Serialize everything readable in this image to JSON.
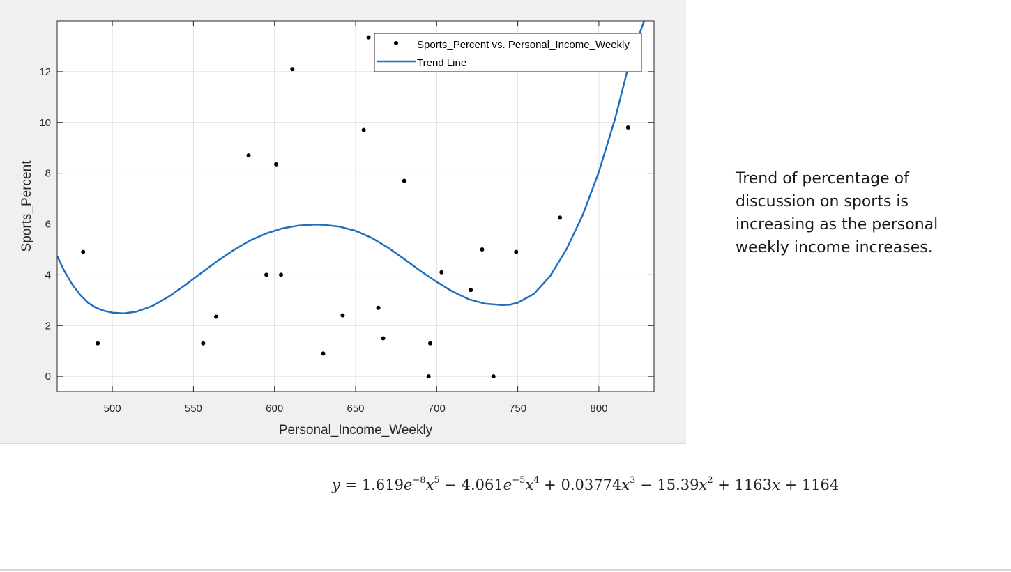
{
  "chart_data": {
    "type": "scatter",
    "xlabel": "Personal_Income_Weekly",
    "ylabel": "Sports_Percent",
    "xlim": [
      466,
      834
    ],
    "ylim": [
      -0.6,
      14.0
    ],
    "xticks": [
      500,
      550,
      600,
      650,
      700,
      750,
      800
    ],
    "yticks": [
      0,
      2,
      4,
      6,
      8,
      10,
      12
    ],
    "grid": true,
    "legend_position": "top-right",
    "series": [
      {
        "name": "Sports_Percent vs. Personal_Income_Weekly",
        "kind": "scatter",
        "color": "#000000",
        "points": [
          {
            "x": 482,
            "y": 4.9
          },
          {
            "x": 491,
            "y": 1.3
          },
          {
            "x": 556,
            "y": 1.3
          },
          {
            "x": 564,
            "y": 2.35
          },
          {
            "x": 584,
            "y": 8.7
          },
          {
            "x": 595,
            "y": 4.0
          },
          {
            "x": 601,
            "y": 8.35
          },
          {
            "x": 604,
            "y": 4.0
          },
          {
            "x": 611,
            "y": 12.1
          },
          {
            "x": 630,
            "y": 0.9
          },
          {
            "x": 642,
            "y": 2.4
          },
          {
            "x": 655,
            "y": 9.7
          },
          {
            "x": 658,
            "y": 13.35
          },
          {
            "x": 664,
            "y": 2.7
          },
          {
            "x": 667,
            "y": 1.5
          },
          {
            "x": 680,
            "y": 7.7
          },
          {
            "x": 695,
            "y": 0.0
          },
          {
            "x": 696,
            "y": 1.3
          },
          {
            "x": 703,
            "y": 4.1
          },
          {
            "x": 721,
            "y": 3.4
          },
          {
            "x": 728,
            "y": 5.0
          },
          {
            "x": 735,
            "y": 0.0
          },
          {
            "x": 749,
            "y": 4.9
          },
          {
            "x": 776,
            "y": 6.25
          },
          {
            "x": 818,
            "y": 9.8
          }
        ]
      },
      {
        "name": "Trend Line",
        "kind": "line",
        "color": "#1f6fbf",
        "points": [
          {
            "x": 466,
            "y": 4.75
          },
          {
            "x": 470,
            "y": 4.2
          },
          {
            "x": 475,
            "y": 3.65
          },
          {
            "x": 480,
            "y": 3.22
          },
          {
            "x": 485,
            "y": 2.9
          },
          {
            "x": 490,
            "y": 2.7
          },
          {
            "x": 495,
            "y": 2.58
          },
          {
            "x": 500,
            "y": 2.51
          },
          {
            "x": 507,
            "y": 2.48
          },
          {
            "x": 515,
            "y": 2.55
          },
          {
            "x": 525,
            "y": 2.78
          },
          {
            "x": 535,
            "y": 3.15
          },
          {
            "x": 545,
            "y": 3.6
          },
          {
            "x": 555,
            "y": 4.08
          },
          {
            "x": 565,
            "y": 4.55
          },
          {
            "x": 575,
            "y": 4.98
          },
          {
            "x": 585,
            "y": 5.35
          },
          {
            "x": 595,
            "y": 5.63
          },
          {
            "x": 605,
            "y": 5.83
          },
          {
            "x": 615,
            "y": 5.94
          },
          {
            "x": 625,
            "y": 5.98
          },
          {
            "x": 630,
            "y": 5.97
          },
          {
            "x": 640,
            "y": 5.9
          },
          {
            "x": 650,
            "y": 5.73
          },
          {
            "x": 660,
            "y": 5.45
          },
          {
            "x": 670,
            "y": 5.07
          },
          {
            "x": 680,
            "y": 4.62
          },
          {
            "x": 690,
            "y": 4.15
          },
          {
            "x": 700,
            "y": 3.72
          },
          {
            "x": 710,
            "y": 3.33
          },
          {
            "x": 720,
            "y": 3.03
          },
          {
            "x": 730,
            "y": 2.86
          },
          {
            "x": 740,
            "y": 2.81
          },
          {
            "x": 745,
            "y": 2.82
          },
          {
            "x": 750,
            "y": 2.9
          },
          {
            "x": 760,
            "y": 3.25
          },
          {
            "x": 770,
            "y": 3.95
          },
          {
            "x": 780,
            "y": 5.0
          },
          {
            "x": 790,
            "y": 6.35
          },
          {
            "x": 800,
            "y": 8.05
          },
          {
            "x": 810,
            "y": 10.15
          },
          {
            "x": 820,
            "y": 12.65
          },
          {
            "x": 828,
            "y": 14.0
          }
        ]
      }
    ]
  },
  "description": "Trend of percentage of discussion on sports is increasing as the personal weekly income increases.",
  "equation": {
    "lhs": "y",
    "eq": " = ",
    "c1": "1.619",
    "e1": "e",
    "p1": "−8",
    "x1": "x",
    "q1": "5",
    "op1": " − ",
    "c2": "4.061",
    "e2": "e",
    "p2": "−5",
    "x2": "x",
    "q2": "4",
    "op2": " + ",
    "c3": "0.03774",
    "x3": "x",
    "q3": "3",
    "op3": " − ",
    "c4": "15.39",
    "x4": "x",
    "q4": "2",
    "op4": " + ",
    "c5": "1163",
    "x5": "x",
    "op5": " + ",
    "c6": "1164"
  }
}
